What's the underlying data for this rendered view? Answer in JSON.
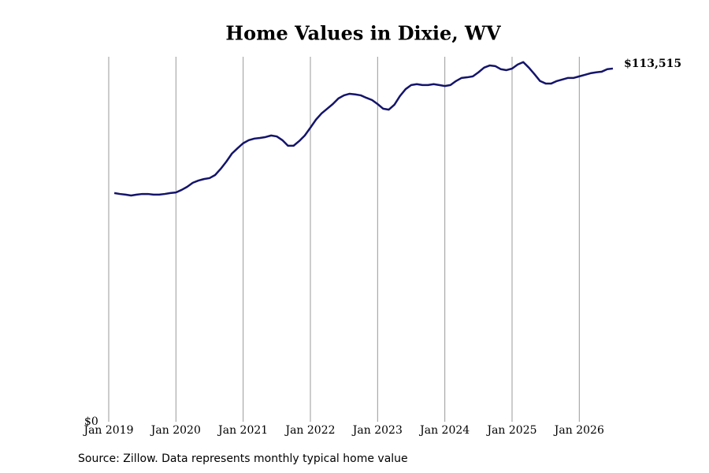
{
  "chart_data": {
    "type": "line",
    "title": "Home Values in Dixie, WV",
    "source": "Source: Zillow. Data represents monthly typical home value",
    "x": [
      "2019-02",
      "2019-03",
      "2019-04",
      "2019-05",
      "2019-06",
      "2019-07",
      "2019-08",
      "2019-09",
      "2019-10",
      "2019-11",
      "2019-12",
      "2020-01",
      "2020-02",
      "2020-03",
      "2020-04",
      "2020-05",
      "2020-06",
      "2020-07",
      "2020-08",
      "2020-09",
      "2020-10",
      "2020-11",
      "2020-12",
      "2021-01",
      "2021-02",
      "2021-03",
      "2021-04",
      "2021-05",
      "2021-06",
      "2021-07",
      "2021-08",
      "2021-09",
      "2021-10",
      "2021-11",
      "2021-12",
      "2022-01",
      "2022-02",
      "2022-03",
      "2022-04",
      "2022-05",
      "2022-06",
      "2022-07",
      "2022-08",
      "2022-09",
      "2022-10",
      "2022-11",
      "2022-12",
      "2023-01",
      "2023-02",
      "2023-03",
      "2023-04",
      "2023-05",
      "2023-06",
      "2023-07",
      "2023-08",
      "2023-09",
      "2023-10",
      "2023-11",
      "2023-12",
      "2024-01",
      "2024-02",
      "2024-03",
      "2024-04",
      "2024-05",
      "2024-06",
      "2024-07",
      "2024-08",
      "2024-09",
      "2024-10",
      "2024-11",
      "2024-12",
      "2025-01",
      "2025-02",
      "2025-03",
      "2025-04",
      "2025-05",
      "2025-06",
      "2025-07",
      "2025-08",
      "2025-09",
      "2025-10",
      "2025-11",
      "2025-12",
      "2026-01",
      "2026-02",
      "2026-03",
      "2026-04",
      "2026-05",
      "2026-06",
      "2026-07"
    ],
    "series": [
      {
        "name": "Typical home value",
        "color": "#14146b",
        "values": [
          73500,
          73200,
          73000,
          72700,
          73000,
          73200,
          73200,
          73000,
          73000,
          73200,
          73500,
          73700,
          74500,
          75500,
          76800,
          77500,
          78000,
          78300,
          79300,
          81300,
          83600,
          86200,
          87900,
          89500,
          90500,
          91000,
          91200,
          91500,
          92000,
          91700,
          90500,
          88700,
          88700,
          90200,
          92000,
          94500,
          97100,
          99100,
          100600,
          102100,
          103900,
          104900,
          105400,
          105200,
          104900,
          104100,
          103400,
          102100,
          100600,
          100300,
          101900,
          104700,
          106900,
          108200,
          108500,
          108200,
          108200,
          108500,
          108200,
          107900,
          108200,
          109500,
          110500,
          110700,
          111000,
          112300,
          113800,
          114500,
          114300,
          113300,
          113000,
          113500,
          114800,
          115600,
          113800,
          111700,
          109500,
          108700,
          108700,
          109500,
          110000,
          110500,
          110500,
          111000,
          111500,
          112000,
          112300,
          112500,
          113300,
          113515
        ],
        "value_labels": [
          null,
          null,
          null,
          null,
          null,
          null,
          null,
          null,
          null,
          null,
          null,
          null,
          null,
          null,
          null,
          null,
          null,
          null,
          null,
          null,
          null,
          null,
          null,
          null,
          null,
          null,
          null,
          null,
          null,
          null,
          null,
          null,
          null,
          null,
          null,
          null,
          null,
          null,
          null,
          null,
          null,
          null,
          null,
          null,
          null,
          null,
          null,
          null,
          null,
          null,
          null,
          null,
          null,
          null,
          null,
          null,
          null,
          null,
          null,
          null,
          null,
          null,
          null,
          null,
          null,
          null,
          null,
          null,
          null,
          null,
          null,
          null,
          null,
          null,
          null,
          null,
          null,
          null,
          null,
          null,
          null,
          null,
          null,
          null,
          null,
          null,
          null,
          null,
          null,
          "$113,515"
        ]
      }
    ],
    "xlim": [
      "2019-01",
      "2026-07"
    ],
    "xticks": [
      {
        "value": "2019-01",
        "label": "Jan 2019"
      },
      {
        "value": "2020-01",
        "label": "Jan 2020"
      },
      {
        "value": "2021-01",
        "label": "Jan 2021"
      },
      {
        "value": "2022-01",
        "label": "Jan 2022"
      },
      {
        "value": "2023-01",
        "label": "Jan 2023"
      },
      {
        "value": "2024-01",
        "label": "Jan 2024"
      },
      {
        "value": "2025-01",
        "label": "Jan 2025"
      },
      {
        "value": "2026-01",
        "label": "Jan 2026"
      }
    ],
    "ylim": [
      0,
      117300
    ],
    "yticks": [
      {
        "value": 0,
        "label": "$0"
      }
    ],
    "grid": "x"
  }
}
